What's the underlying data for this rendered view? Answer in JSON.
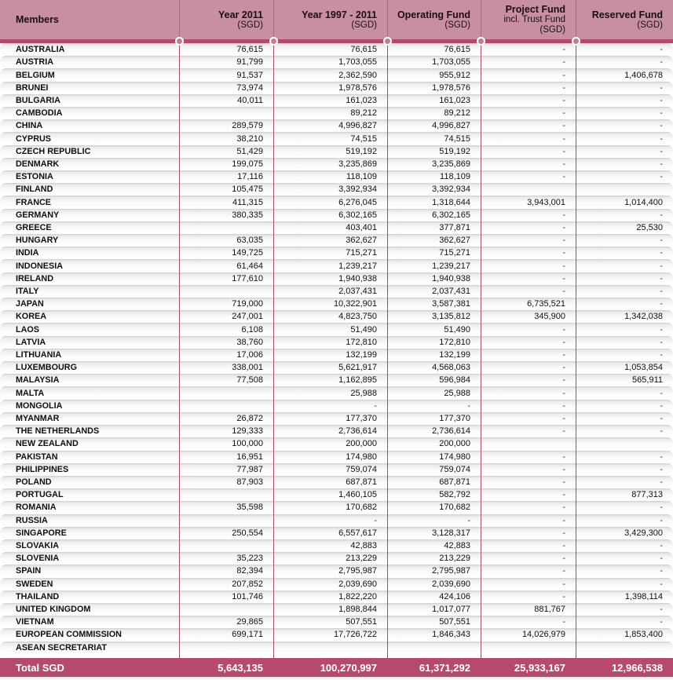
{
  "colors": {
    "header_bg": "#c78fa1",
    "header_divider": "#a86880",
    "bar_bg": "#b24a6e",
    "circle_fill": "#c07e92",
    "body_divider": "#a84a68",
    "total_bg": "#b54a6e"
  },
  "table": {
    "columns": [
      {
        "label": "Members",
        "sub": "",
        "sub2": ""
      },
      {
        "label": "Year 2011",
        "sub": "(SGD)",
        "sub2": ""
      },
      {
        "label": "Year 1997 - 2011",
        "sub": "(SGD)",
        "sub2": ""
      },
      {
        "label": "Operating Fund",
        "sub": "(SGD)",
        "sub2": ""
      },
      {
        "label": "Project Fund",
        "sub2": "incl. Trust Fund",
        "sub": "(SGD)"
      },
      {
        "label": "Reserved Fund",
        "sub": "(SGD)",
        "sub2": ""
      }
    ],
    "rows": [
      {
        "member": "AUSTRALIA",
        "values": [
          "76,615",
          "76,615",
          "76,615",
          "-",
          "-"
        ]
      },
      {
        "member": "AUSTRIA",
        "values": [
          "91,799",
          "1,703,055",
          "1,703,055",
          "-",
          "-"
        ]
      },
      {
        "member": "BELGIUM",
        "values": [
          "91,537",
          "2,362,590",
          "955,912",
          "-",
          "1,406,678"
        ]
      },
      {
        "member": "BRUNEI",
        "values": [
          "73,974",
          "1,978,576",
          "1,978,576",
          "-",
          "-"
        ]
      },
      {
        "member": "BULGARIA",
        "values": [
          "40,011",
          "161,023",
          "161,023",
          "-",
          "-"
        ]
      },
      {
        "member": "CAMBODIA",
        "values": [
          "",
          "89,212",
          "89,212",
          "-",
          "-"
        ]
      },
      {
        "member": "CHINA",
        "values": [
          "289,579",
          "4,996,827",
          "4,996,827",
          "-",
          "-"
        ]
      },
      {
        "member": "CYPRUS",
        "values": [
          "38,210",
          "74,515",
          "74,515",
          "-",
          "-"
        ]
      },
      {
        "member": "CZECH REPUBLIC",
        "values": [
          "51,429",
          "519,192",
          "519,192",
          "-",
          "-"
        ]
      },
      {
        "member": "DENMARK",
        "values": [
          "199,075",
          "3,235,869",
          "3,235,869",
          "-",
          "-"
        ]
      },
      {
        "member": "ESTONIA",
        "values": [
          "17,116",
          "118,109",
          "118,109",
          "-",
          "-"
        ]
      },
      {
        "member": "FINLAND",
        "values": [
          "105,475",
          "3,392,934",
          "3,392,934",
          "",
          ""
        ]
      },
      {
        "member": "FRANCE",
        "values": [
          "411,315",
          "6,276,045",
          "1,318,644",
          "3,943,001",
          "1,014,400"
        ]
      },
      {
        "member": "GERMANY",
        "values": [
          "380,335",
          "6,302,165",
          "6,302,165",
          "-",
          "-"
        ]
      },
      {
        "member": "GREECE",
        "values": [
          "",
          "403,401",
          "377,871",
          "-",
          "25,530"
        ]
      },
      {
        "member": "HUNGARY",
        "values": [
          "63,035",
          "362,627",
          "362,627",
          "-",
          "-"
        ]
      },
      {
        "member": "INDIA",
        "values": [
          "149,725",
          "715,271",
          "715,271",
          "-",
          "-"
        ]
      },
      {
        "member": "INDONESIA",
        "values": [
          "61,464",
          "1,239,217",
          "1,239,217",
          "-",
          "-"
        ]
      },
      {
        "member": "IRELAND",
        "values": [
          "177,610",
          "1,940,938",
          "1,940,938",
          "-",
          "-"
        ]
      },
      {
        "member": "ITALY",
        "values": [
          "",
          "2,037,431",
          "2,037,431",
          "-",
          "-"
        ]
      },
      {
        "member": "JAPAN",
        "values": [
          "719,000",
          "10,322,901",
          "3,587,381",
          "6,735,521",
          "-"
        ]
      },
      {
        "member": "KOREA",
        "values": [
          "247,001",
          "4,823,750",
          "3,135,812",
          "345,900",
          "1,342,038"
        ]
      },
      {
        "member": "LAOS",
        "values": [
          "6,108",
          "51,490",
          "51,490",
          "-",
          "-"
        ]
      },
      {
        "member": "LATVIA",
        "values": [
          "38,760",
          "172,810",
          "172,810",
          "-",
          "-"
        ]
      },
      {
        "member": "LITHUANIA",
        "values": [
          "17,006",
          "132,199",
          "132,199",
          "-",
          "-"
        ]
      },
      {
        "member": "LUXEMBOURG",
        "values": [
          "338,001",
          "5,621,917",
          "4,568,063",
          "-",
          "1,053,854"
        ]
      },
      {
        "member": "MALAYSIA",
        "values": [
          "77,508",
          "1,162,895",
          "596,984",
          "-",
          "565,911"
        ]
      },
      {
        "member": "MALTA",
        "values": [
          "",
          "25,988",
          "25,988",
          "-",
          "-"
        ]
      },
      {
        "member": "MONGOLIA",
        "values": [
          "",
          "-",
          "-",
          "-",
          "-"
        ]
      },
      {
        "member": "MYANMAR",
        "values": [
          "26,872",
          "177,370",
          "177,370",
          "-",
          "-"
        ]
      },
      {
        "member": "THE NETHERLANDS",
        "values": [
          "129,333",
          "2,736,614",
          "2,736,614",
          "-",
          "-"
        ]
      },
      {
        "member": "NEW ZEALAND",
        "values": [
          "100,000",
          "200,000",
          "200,000",
          "",
          ""
        ]
      },
      {
        "member": "PAKISTAN",
        "values": [
          "16,951",
          "174,980",
          "174,980",
          "-",
          "-"
        ]
      },
      {
        "member": "PHILIPPINES",
        "values": [
          "77,987",
          "759,074",
          "759,074",
          "-",
          "-"
        ]
      },
      {
        "member": "POLAND",
        "values": [
          "87,903",
          "687,871",
          "687,871",
          "-",
          "-"
        ]
      },
      {
        "member": "PORTUGAL",
        "values": [
          "",
          "1,460,105",
          "582,792",
          "-",
          "877,313"
        ]
      },
      {
        "member": "ROMANIA",
        "values": [
          "35,598",
          "170,682",
          "170,682",
          "-",
          "-"
        ]
      },
      {
        "member": "RUSSIA",
        "values": [
          "",
          "-",
          "-",
          "-",
          "-"
        ]
      },
      {
        "member": "SINGAPORE",
        "values": [
          "250,554",
          "6,557,617",
          "3,128,317",
          "-",
          "3,429,300"
        ]
      },
      {
        "member": "SLOVAKIA",
        "values": [
          "",
          "42,883",
          "42,883",
          "-",
          "-"
        ]
      },
      {
        "member": "SLOVENIA",
        "values": [
          "35,223",
          "213,229",
          "213,229",
          "-",
          "-"
        ]
      },
      {
        "member": "SPAIN",
        "values": [
          "82,394",
          "2,795,987",
          "2,795,987",
          "-",
          "-"
        ]
      },
      {
        "member": "SWEDEN",
        "values": [
          "207,852",
          "2,039,690",
          "2,039,690",
          "-",
          "-"
        ]
      },
      {
        "member": "THAILAND",
        "values": [
          "101,746",
          "1,822,220",
          "424,106",
          "-",
          "1,398,114"
        ]
      },
      {
        "member": "UNITED KINGDOM",
        "values": [
          "",
          "1,898,844",
          "1,017,077",
          "881,767",
          "-"
        ]
      },
      {
        "member": "VIETNAM",
        "values": [
          "29,865",
          "507,551",
          "507,551",
          "-",
          "-"
        ]
      },
      {
        "member": "EUROPEAN COMMISSION",
        "values": [
          "699,171",
          "17,726,722",
          "1,846,343",
          "14,026,979",
          "1,853,400"
        ]
      },
      {
        "member": "ASEAN SECRETARIAT",
        "values": [
          "",
          "",
          "",
          "",
          ""
        ]
      }
    ],
    "total": {
      "label": "Total SGD",
      "values": [
        "5,643,135",
        "100,270,997",
        "61,371,292",
        "25,933,167",
        "12,966,538"
      ]
    }
  }
}
